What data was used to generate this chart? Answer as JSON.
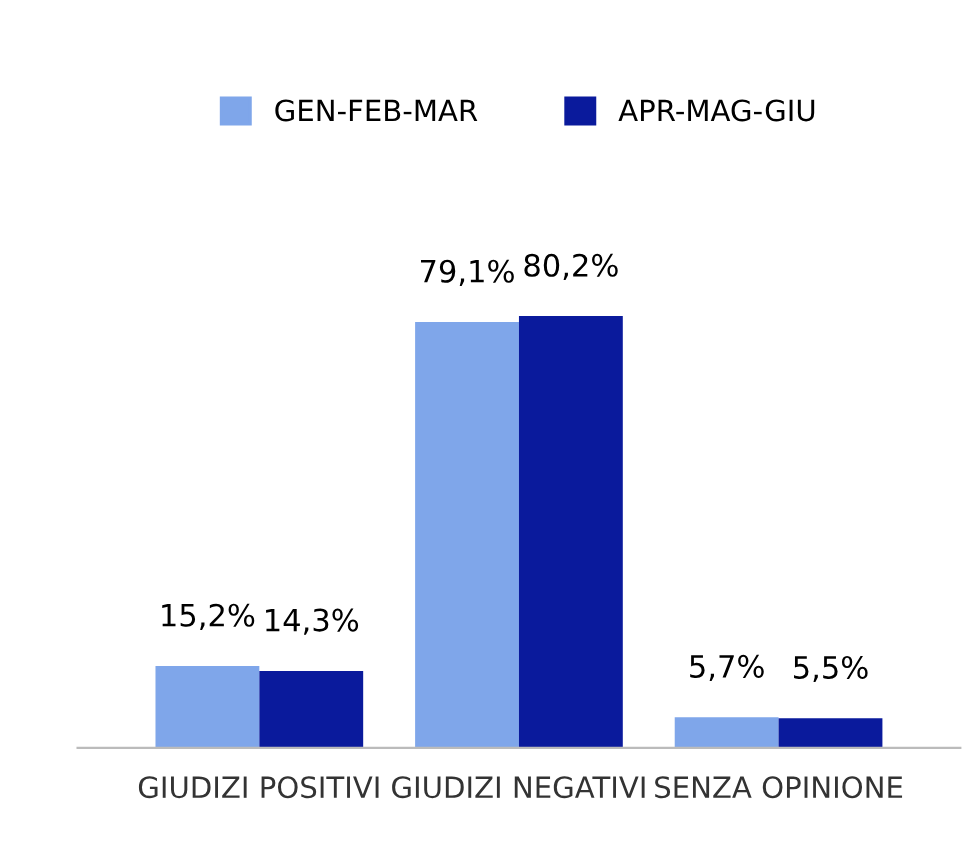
{
  "chart_data": {
    "type": "bar",
    "categories": [
      "GIUDIZI POSITIVI",
      "GIUDIZI NEGATIVI",
      "SENZA OPINIONE"
    ],
    "series": [
      {
        "name": "GEN-FEB-MAR",
        "color": "#7fa6ea",
        "values": [
          15.2,
          79.1,
          5.7
        ],
        "value_labels": [
          "15,2%",
          "79,1%",
          "5,7%"
        ]
      },
      {
        "name": "APR-MAG-GIU",
        "color": "#0a1a9c",
        "values": [
          14.3,
          80.2,
          5.5
        ],
        "value_labels": [
          "14,3%",
          "80,2%",
          "5,5%"
        ]
      }
    ],
    "legend": "top",
    "grid": false
  }
}
